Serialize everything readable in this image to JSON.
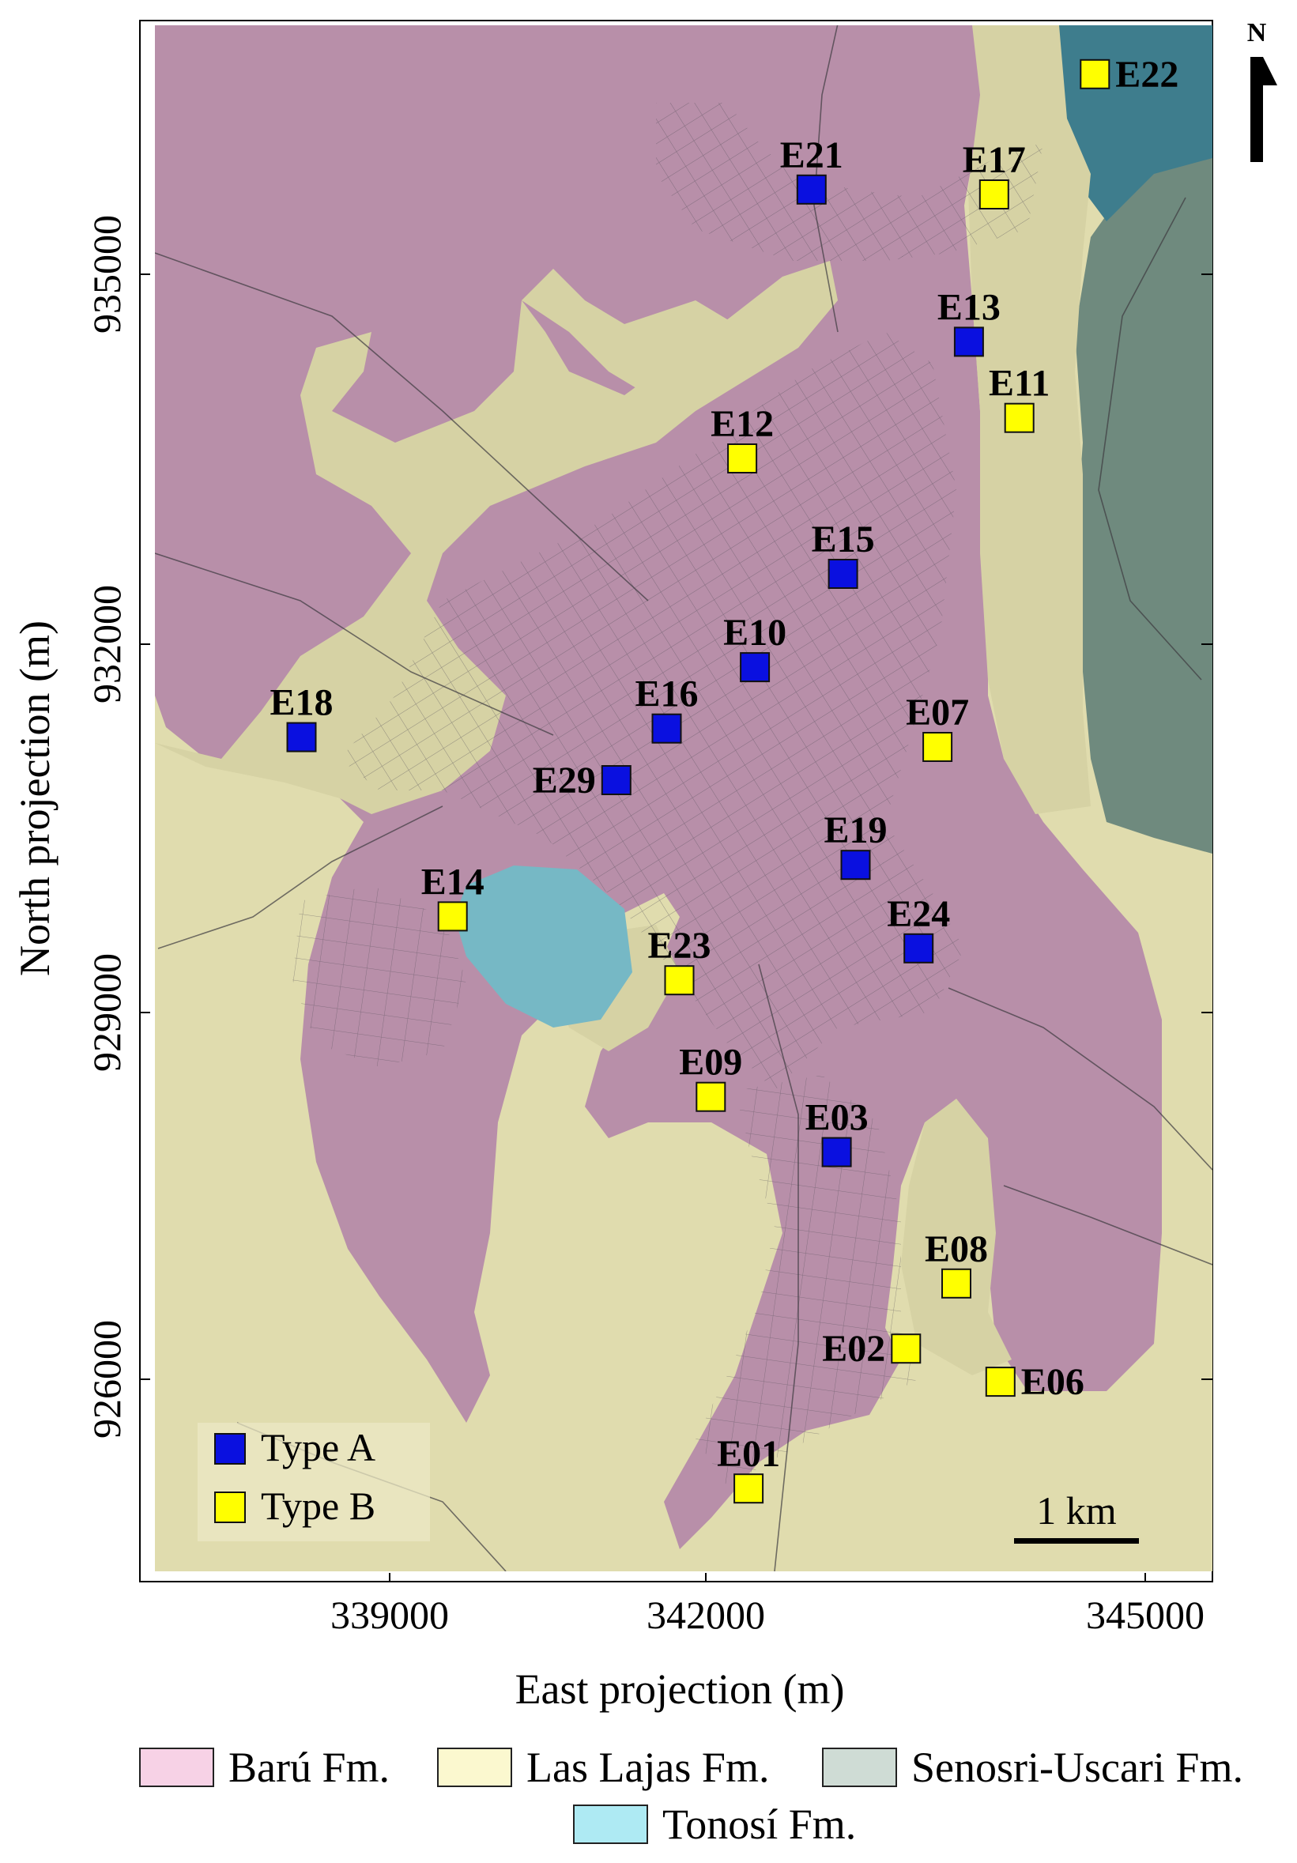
{
  "map": {
    "north_arrow_label": "N",
    "x_axis_title": "East projection (m)",
    "y_axis_title": "North projection (m)",
    "x_ticks": [
      "339000",
      "342000",
      "345000"
    ],
    "y_ticks": [
      "935000",
      "932000",
      "929000",
      "926000"
    ],
    "scale_bar_label": "1 km",
    "inset_legend": [
      {
        "label": "Type A",
        "color": "#0a10e0"
      },
      {
        "label": "Type B",
        "color": "#ffff00"
      }
    ],
    "stations": [
      {
        "id": "E22",
        "type": "B",
        "east": 344600,
        "north": 936630
      },
      {
        "id": "E21",
        "type": "A",
        "east": 342350,
        "north": 935690
      },
      {
        "id": "E17",
        "type": "B",
        "east": 343800,
        "north": 935650
      },
      {
        "id": "E13",
        "type": "A",
        "east": 343600,
        "north": 934450
      },
      {
        "id": "E11",
        "type": "B",
        "east": 344000,
        "north": 933830
      },
      {
        "id": "E12",
        "type": "B",
        "east": 341800,
        "north": 933500
      },
      {
        "id": "E15",
        "type": "A",
        "east": 342600,
        "north": 932560
      },
      {
        "id": "E10",
        "type": "A",
        "east": 341900,
        "north": 931800
      },
      {
        "id": "E16",
        "type": "A",
        "east": 341200,
        "north": 931300
      },
      {
        "id": "E18",
        "type": "A",
        "east": 338300,
        "north": 931230
      },
      {
        "id": "E07",
        "type": "B",
        "east": 343350,
        "north": 931150
      },
      {
        "id": "E29",
        "type": "A",
        "east": 340800,
        "north": 930880
      },
      {
        "id": "E19",
        "type": "A",
        "east": 342700,
        "north": 930190
      },
      {
        "id": "E14",
        "type": "B",
        "east": 339500,
        "north": 929770
      },
      {
        "id": "E24",
        "type": "A",
        "east": 343200,
        "north": 929510
      },
      {
        "id": "E23",
        "type": "B",
        "east": 341300,
        "north": 929250
      },
      {
        "id": "E09",
        "type": "B",
        "east": 341550,
        "north": 928300
      },
      {
        "id": "E03",
        "type": "A",
        "east": 342550,
        "north": 927850
      },
      {
        "id": "E08",
        "type": "B",
        "east": 343500,
        "north": 926780
      },
      {
        "id": "E02",
        "type": "B",
        "east": 343100,
        "north": 926250
      },
      {
        "id": "E06",
        "type": "B",
        "east": 343850,
        "north": 925980
      },
      {
        "id": "E01",
        "type": "B",
        "east": 341850,
        "north": 925110
      }
    ]
  },
  "legend": {
    "formations": [
      {
        "label": "Barú Fm.",
        "color": "#f7d2e6"
      },
      {
        "label": "Las Lajas Fm.",
        "color": "#fbf8cf"
      },
      {
        "label": "Senosri-Uscari Fm.",
        "color": "#cfdcd5"
      },
      {
        "label": "Tonosí Fm.",
        "color": "#aeeaf3"
      }
    ]
  }
}
